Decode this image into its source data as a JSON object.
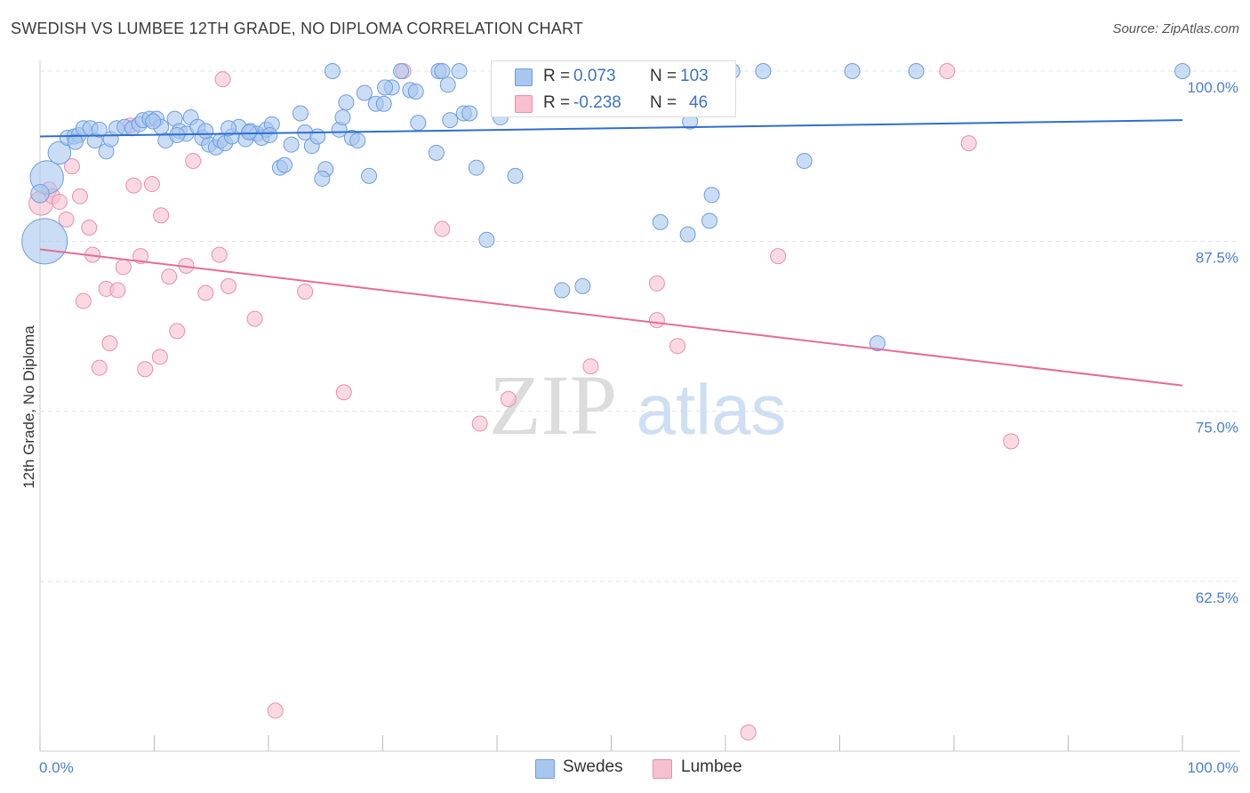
{
  "header": {
    "title": "SWEDISH VS LUMBEE 12TH GRADE, NO DIPLOMA CORRELATION CHART",
    "source": "Source: ZipAtlas.com"
  },
  "legend": {
    "rows": [
      {
        "r_label": "R =",
        "r_value": "0.073",
        "n_label": "N =",
        "n_value": "103"
      },
      {
        "r_label": "R =",
        "r_value": "-0.238",
        "n_label": "N =",
        "n_value": "46"
      }
    ]
  },
  "bottom_legend": {
    "swedes": "Swedes",
    "lumbee": "Lumbee"
  },
  "watermark": {
    "zip": "ZIP",
    "atlas": "atlas"
  },
  "colors": {
    "swedes_fill": "#a9c6ef",
    "swedes_stroke": "#6d9ee0",
    "swedes_line": "#2f6fce",
    "lumbee_fill": "#f7bfd0",
    "lumbee_stroke": "#ea8fac",
    "lumbee_line": "#e46d97",
    "tick_text": "#4a7fd4",
    "grid": "#e3e3e3"
  },
  "chart_data": {
    "type": "scatter",
    "title": "SWEDISH VS LUMBEE 12TH GRADE, NO DIPLOMA CORRELATION CHART",
    "xlabel": "",
    "ylabel": "12th Grade, No Diploma",
    "xlim": [
      0,
      100
    ],
    "ylim": [
      50,
      102
    ],
    "x_tick_labels": [
      "0.0%",
      "100.0%"
    ],
    "y_ticks": [
      100.0,
      87.5,
      75.0,
      62.5
    ],
    "y_tick_labels": [
      "100.0%",
      "87.5%",
      "75.0%",
      "62.5%"
    ],
    "grid": true,
    "legend_position": "top-center",
    "series": [
      {
        "name": "Swedes",
        "r": 0.073,
        "n": 103,
        "trend": {
          "x": [
            0,
            100
          ],
          "y": [
            95.2,
            96.4
          ]
        },
        "points": [
          [
            0.4,
            87.5,
            3
          ],
          [
            0.6,
            92.2,
            2.2
          ],
          [
            1.7,
            94.0,
            1.5
          ],
          [
            2.4,
            95.1,
            1
          ],
          [
            3.0,
            95.2,
            1
          ],
          [
            3.4,
            95.3,
            1
          ],
          [
            3.8,
            95.8,
            1
          ],
          [
            4.4,
            95.8,
            1
          ],
          [
            4.8,
            94.9,
            1
          ],
          [
            5.8,
            94.1,
            1
          ],
          [
            6.2,
            95.0,
            1
          ],
          [
            6.7,
            95.8,
            1
          ],
          [
            7.4,
            95.9,
            1
          ],
          [
            8.1,
            95.8,
            1
          ],
          [
            8.7,
            96.1,
            1
          ],
          [
            9.0,
            96.4,
            1
          ],
          [
            9.6,
            96.5,
            1
          ],
          [
            10.2,
            96.5,
            1
          ],
          [
            10.6,
            95.9,
            1
          ],
          [
            11.0,
            94.9,
            1
          ],
          [
            11.8,
            96.5,
            1
          ],
          [
            12.2,
            95.6,
            1
          ],
          [
            12.8,
            95.4,
            1
          ],
          [
            13.2,
            96.6,
            1
          ],
          [
            13.8,
            95.9,
            1
          ],
          [
            14.2,
            95.1,
            1
          ],
          [
            14.8,
            94.6,
            1
          ],
          [
            15.4,
            94.4,
            1
          ],
          [
            15.8,
            94.9,
            1
          ],
          [
            16.2,
            94.7,
            1
          ],
          [
            16.8,
            95.2,
            1
          ],
          [
            17.4,
            95.9,
            1
          ],
          [
            18.0,
            95.0,
            1
          ],
          [
            18.4,
            95.6,
            1
          ],
          [
            19.0,
            95.4,
            1
          ],
          [
            19.4,
            95.1,
            1
          ],
          [
            19.8,
            95.7,
            1
          ],
          [
            20.3,
            96.1,
            1
          ],
          [
            21.0,
            92.9,
            1
          ],
          [
            21.4,
            93.1,
            1
          ],
          [
            22.0,
            94.6,
            1
          ],
          [
            22.8,
            96.9,
            1
          ],
          [
            23.2,
            95.5,
            1
          ],
          [
            23.8,
            94.5,
            1
          ],
          [
            24.3,
            95.2,
            1
          ],
          [
            25.0,
            92.8,
            1
          ],
          [
            25.6,
            100.0,
            1
          ],
          [
            26.2,
            95.7,
            1
          ],
          [
            26.5,
            96.6,
            1
          ],
          [
            27.3,
            95.1,
            1
          ],
          [
            27.8,
            94.9,
            1
          ],
          [
            28.4,
            98.4,
            1
          ],
          [
            28.8,
            92.3,
            1
          ],
          [
            29.4,
            97.6,
            1
          ],
          [
            30.1,
            97.6,
            1
          ],
          [
            30.8,
            98.8,
            1
          ],
          [
            31.6,
            100.0,
            1
          ],
          [
            32.4,
            98.6,
            1
          ],
          [
            32.9,
            98.5,
            1
          ],
          [
            33.1,
            96.2,
            1
          ],
          [
            34.7,
            94.0,
            1
          ],
          [
            34.9,
            100.0,
            1
          ],
          [
            35.2,
            100.0,
            1
          ],
          [
            35.7,
            99.0,
            1
          ],
          [
            36.7,
            100.0,
            1
          ],
          [
            37.1,
            96.9,
            1
          ],
          [
            37.6,
            96.9,
            1
          ],
          [
            38.2,
            92.9,
            1
          ],
          [
            39.1,
            87.6,
            1
          ],
          [
            40.3,
            96.6,
            1
          ],
          [
            41.3,
            100.0,
            1
          ],
          [
            41.6,
            92.3,
            1
          ],
          [
            45.7,
            83.9,
            1
          ],
          [
            46.5,
            100.0,
            1
          ],
          [
            47.5,
            84.2,
            1
          ],
          [
            50.3,
            97.3,
            1
          ],
          [
            53.2,
            100.0,
            1
          ],
          [
            54.3,
            88.9,
            1
          ],
          [
            56.1,
            100.0,
            1
          ],
          [
            56.7,
            88.0,
            1
          ],
          [
            56.9,
            96.3,
            1
          ],
          [
            58.6,
            89.0,
            1
          ],
          [
            58.8,
            90.9,
            1
          ],
          [
            60.6,
            100.0,
            1
          ],
          [
            63.3,
            100.0,
            1
          ],
          [
            66.9,
            93.4,
            1
          ],
          [
            71.1,
            100.0,
            1
          ],
          [
            73.3,
            80.0,
            1
          ],
          [
            76.7,
            100.0,
            1
          ],
          [
            100.0,
            100.0,
            1
          ],
          [
            0.0,
            91.0,
            1.2
          ],
          [
            18.3,
            95.5,
            1
          ],
          [
            20.1,
            95.3,
            1
          ],
          [
            9.9,
            96.3,
            1
          ],
          [
            14.5,
            95.6,
            1
          ],
          [
            24.7,
            92.1,
            1
          ],
          [
            30.2,
            98.8,
            1
          ],
          [
            35.9,
            96.4,
            1
          ],
          [
            26.8,
            97.7,
            1
          ],
          [
            3.1,
            94.8,
            1
          ],
          [
            5.2,
            95.7,
            1
          ],
          [
            12.0,
            95.3,
            1
          ],
          [
            16.5,
            95.8,
            1
          ]
        ]
      },
      {
        "name": "Lumbee",
        "r": -0.238,
        "n": 46,
        "trend": {
          "x": [
            0,
            100
          ],
          "y": [
            86.9,
            76.9
          ]
        },
        "points": [
          [
            0.1,
            90.3,
            1.6
          ],
          [
            0.8,
            91.3,
            1
          ],
          [
            1.1,
            90.8,
            1
          ],
          [
            1.7,
            90.4,
            1
          ],
          [
            2.3,
            89.1,
            1
          ],
          [
            2.8,
            93.0,
            1
          ],
          [
            3.5,
            90.8,
            1
          ],
          [
            3.8,
            83.1,
            1
          ],
          [
            4.3,
            88.5,
            1
          ],
          [
            4.6,
            86.5,
            1
          ],
          [
            5.2,
            78.2,
            1
          ],
          [
            5.8,
            84.0,
            1
          ],
          [
            6.1,
            80.0,
            1
          ],
          [
            6.8,
            83.9,
            1
          ],
          [
            7.3,
            85.6,
            1
          ],
          [
            7.9,
            96.0,
            1
          ],
          [
            8.2,
            91.6,
            1
          ],
          [
            8.8,
            86.4,
            1
          ],
          [
            9.2,
            78.1,
            1
          ],
          [
            9.8,
            91.7,
            1
          ],
          [
            10.6,
            89.4,
            1
          ],
          [
            10.5,
            79.0,
            1
          ],
          [
            11.3,
            84.9,
            1
          ],
          [
            12.0,
            80.9,
            1
          ],
          [
            12.8,
            85.7,
            1
          ],
          [
            13.4,
            93.4,
            1
          ],
          [
            14.5,
            83.7,
            1
          ],
          [
            15.7,
            86.5,
            1
          ],
          [
            16.0,
            99.4,
            1
          ],
          [
            16.5,
            84.2,
            1
          ],
          [
            18.8,
            81.8,
            1
          ],
          [
            20.6,
            53.0,
            1
          ],
          [
            23.2,
            83.8,
            1
          ],
          [
            26.6,
            76.4,
            1
          ],
          [
            31.8,
            100.0,
            1
          ],
          [
            35.2,
            88.4,
            1
          ],
          [
            38.5,
            74.1,
            1
          ],
          [
            41.0,
            75.9,
            1
          ],
          [
            48.2,
            78.3,
            1
          ],
          [
            54.0,
            84.4,
            1
          ],
          [
            54.0,
            81.7,
            1
          ],
          [
            55.8,
            79.8,
            1
          ],
          [
            62.0,
            51.4,
            1
          ],
          [
            64.6,
            86.4,
            1
          ],
          [
            79.4,
            100.0,
            1
          ],
          [
            81.3,
            94.7,
            1
          ],
          [
            85.0,
            72.8,
            1
          ]
        ]
      }
    ]
  }
}
